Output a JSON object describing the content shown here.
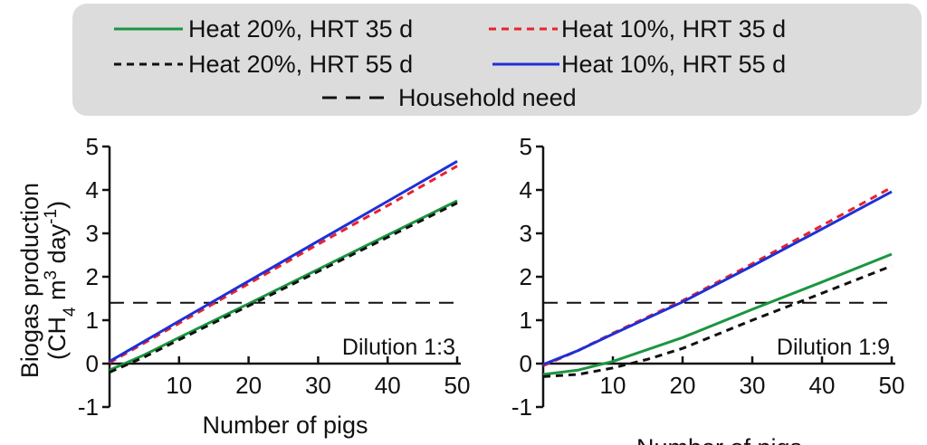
{
  "legend": {
    "items": [
      {
        "label": "Heat 20%, HRT 35 d",
        "color": "#1a9641",
        "dash": "solid"
      },
      {
        "label": "Heat 10%, HRT 35 d",
        "color": "#e8232a",
        "dash": "short"
      },
      {
        "label": "Heat 20%, HRT 55 d",
        "color": "#111111",
        "dash": "short"
      },
      {
        "label": "Heat 10%, HRT 55 d",
        "color": "#1f2fd6",
        "dash": "solid"
      },
      {
        "label": "Household need",
        "color": "#111111",
        "dash": "long"
      }
    ]
  },
  "y_axis_title": {
    "line1": "Biogas production",
    "line2_parts": [
      "(CH",
      "4",
      " m",
      "3",
      " day",
      "-1",
      ")"
    ]
  },
  "chart_data": [
    {
      "type": "line",
      "panel_label": "Dilution 1:3",
      "xlabel": "Number of pigs",
      "xlim": [
        0,
        50
      ],
      "ylim": [
        -1,
        5
      ],
      "xticks": [
        10,
        20,
        30,
        40,
        50
      ],
      "yticks": [
        -1,
        0,
        1,
        2,
        3,
        4,
        5
      ],
      "household_need": 1.4,
      "series": [
        {
          "name": "Heat 20%, HRT 35 d",
          "x": [
            0,
            5,
            10,
            20,
            30,
            40,
            50
          ],
          "values": [
            -0.15,
            0.2,
            0.6,
            1.38,
            2.17,
            2.96,
            3.75
          ]
        },
        {
          "name": "Heat 10%, HRT 35 d",
          "x": [
            0,
            10,
            20,
            30,
            40,
            50
          ],
          "values": [
            0.02,
            0.93,
            1.84,
            2.75,
            3.64,
            4.55
          ]
        },
        {
          "name": "Heat 20%, HRT 55 d",
          "x": [
            0,
            5,
            10,
            20,
            30,
            40,
            50
          ],
          "values": [
            -0.2,
            0.15,
            0.55,
            1.33,
            2.12,
            2.91,
            3.7
          ]
        },
        {
          "name": "Heat 10%, HRT 55 d",
          "x": [
            0,
            10,
            20,
            30,
            40,
            50
          ],
          "values": [
            0.05,
            0.98,
            1.9,
            2.82,
            3.74,
            4.66
          ]
        }
      ]
    },
    {
      "type": "line",
      "panel_label": "Dilution 1:9",
      "xlabel": "Number of pigs",
      "xlim": [
        0,
        50
      ],
      "ylim": [
        -1,
        5
      ],
      "xticks": [
        10,
        20,
        30,
        40,
        50
      ],
      "yticks": [
        -1,
        0,
        1,
        2,
        3,
        4,
        5
      ],
      "household_need": 1.4,
      "series": [
        {
          "name": "Heat 20%, HRT 35 d",
          "x": [
            0,
            5,
            10,
            20,
            30,
            40,
            50
          ],
          "values": [
            -0.25,
            -0.15,
            0.05,
            0.6,
            1.25,
            1.88,
            2.52
          ]
        },
        {
          "name": "Heat 10%, HRT 35 d",
          "x": [
            0,
            5,
            10,
            20,
            30,
            40,
            50
          ],
          "values": [
            -0.05,
            0.3,
            0.7,
            1.45,
            2.3,
            3.18,
            4.06
          ]
        },
        {
          "name": "Heat 20%, HRT 55 d",
          "x": [
            0,
            5,
            10,
            15,
            20,
            30,
            40,
            50
          ],
          "values": [
            -0.3,
            -0.25,
            -0.1,
            0.1,
            0.35,
            1.0,
            1.62,
            2.25
          ]
        },
        {
          "name": "Heat 10%, HRT 55 d",
          "x": [
            0,
            5,
            10,
            20,
            30,
            40,
            50
          ],
          "values": [
            -0.02,
            0.3,
            0.68,
            1.42,
            2.25,
            3.1,
            3.96
          ]
        }
      ]
    }
  ]
}
